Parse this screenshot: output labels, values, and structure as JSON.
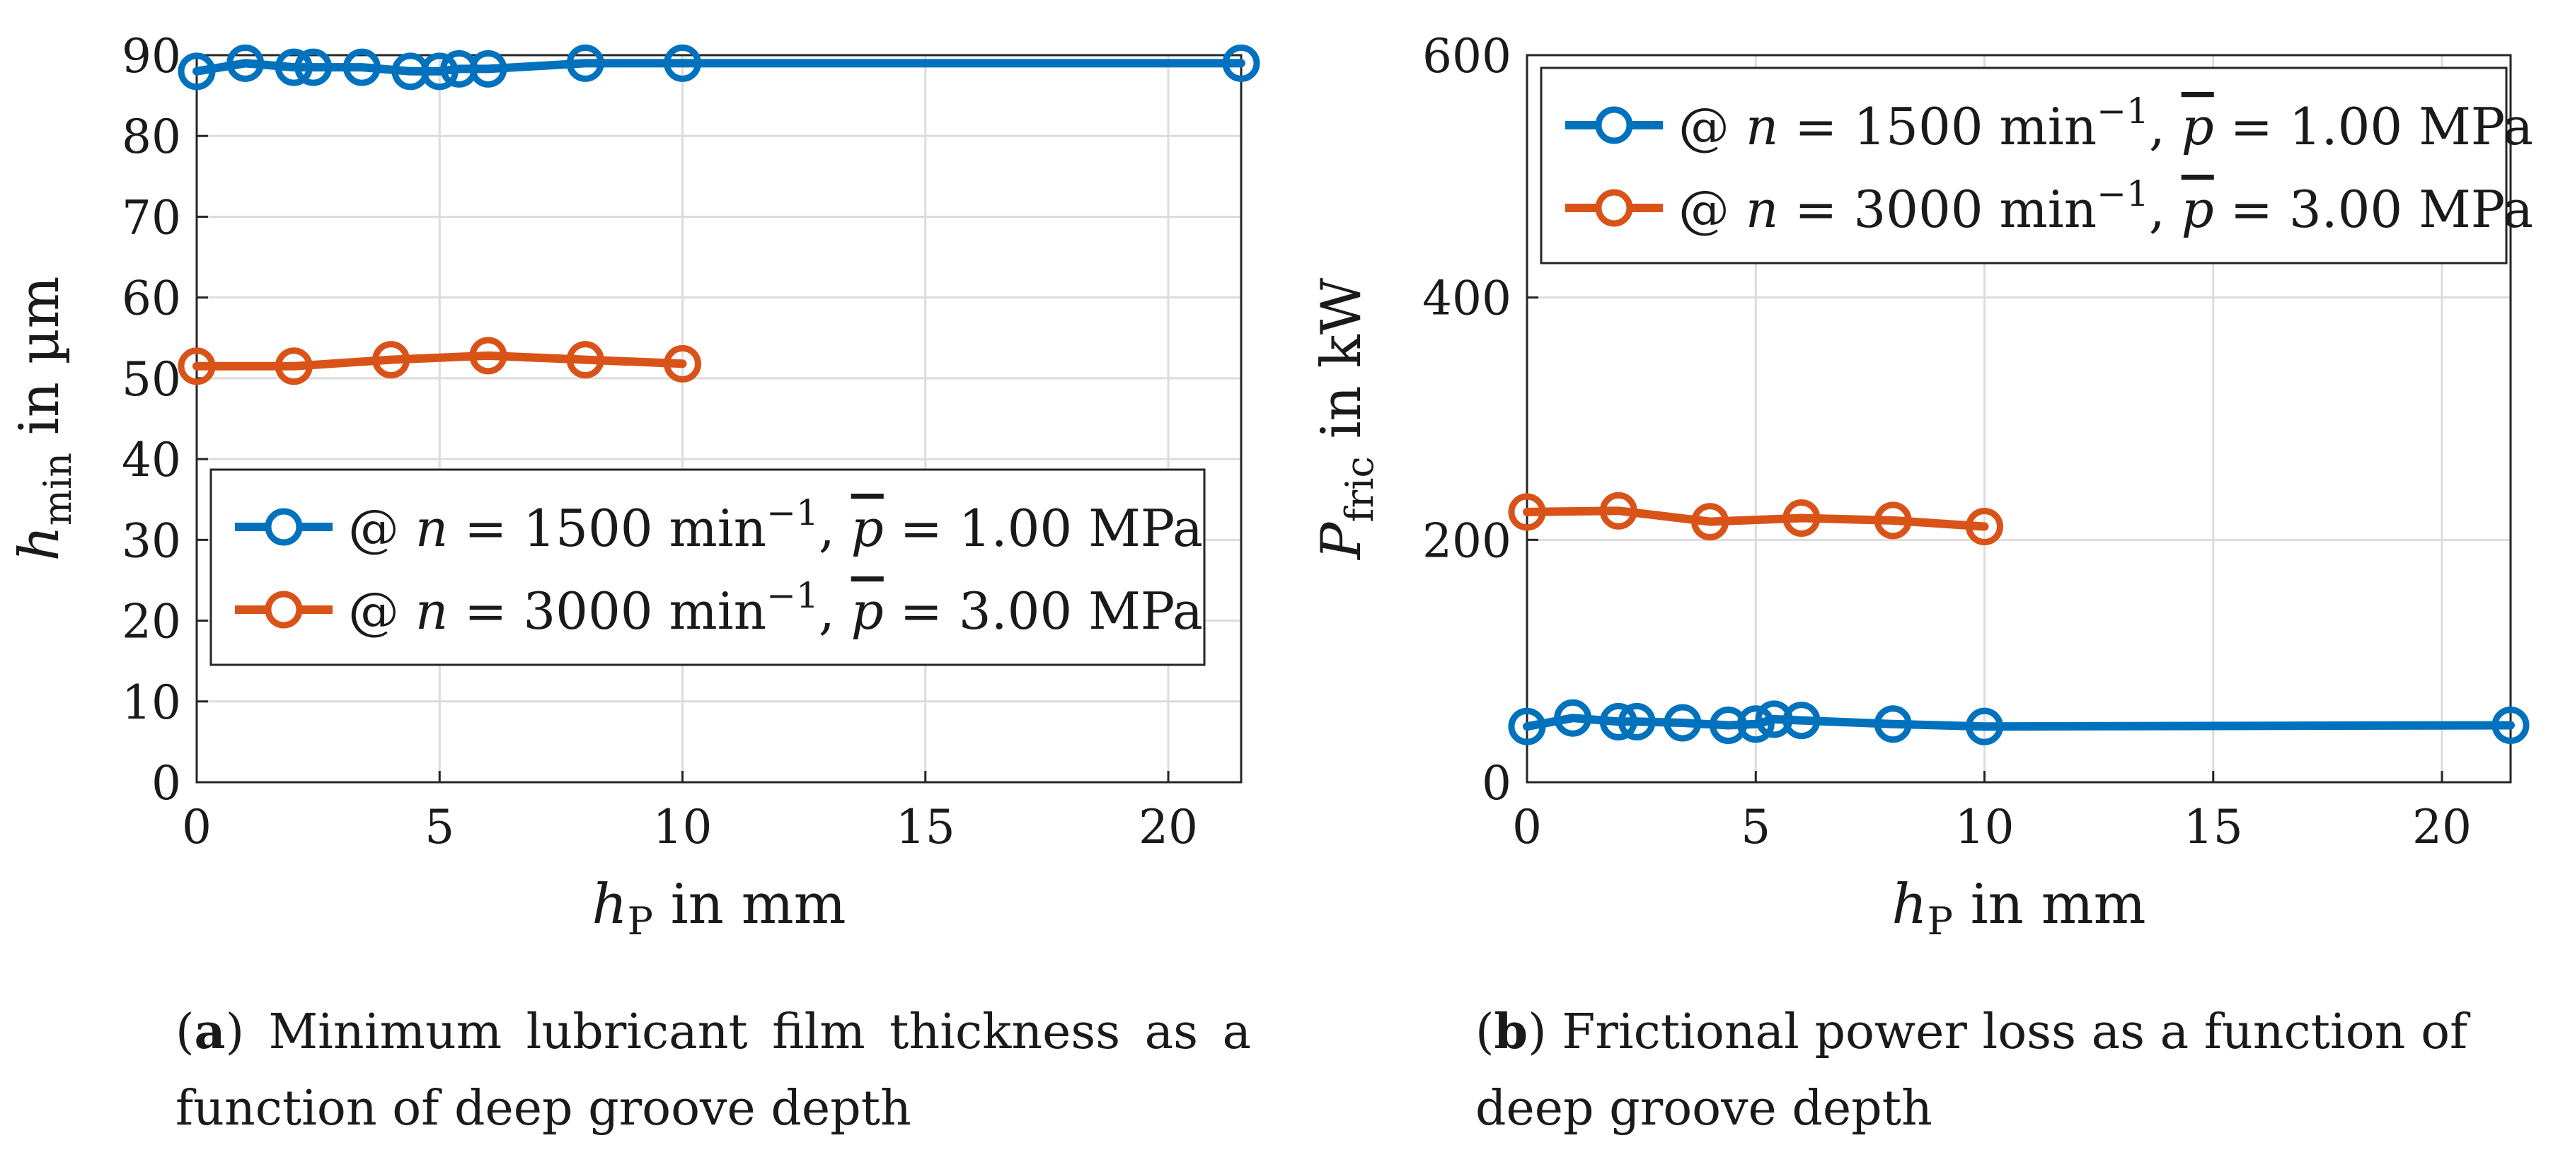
{
  "chart_data": [
    {
      "type": "line",
      "panel": "a",
      "xlabel": "h_P in mm",
      "ylabel": "h_min in µm",
      "xlim": [
        0,
        21.5
      ],
      "ylim": [
        0,
        90
      ],
      "xticks": [
        "0",
        "5",
        "10",
        "15",
        "20"
      ],
      "yticks": [
        "0",
        "10",
        "20",
        "30",
        "40",
        "50",
        "60",
        "70",
        "80",
        "90"
      ],
      "grid": true,
      "legend_position": "lower-right",
      "series": [
        {
          "name": "@ n = 1500 min⁻¹, p̄ = 1.00 MPa",
          "color": "#0072BD",
          "x": [
            0,
            1,
            2,
            2.4,
            3.4,
            4.4,
            5,
            5.4,
            6,
            8,
            10,
            21.5
          ],
          "y": [
            88,
            89,
            88.5,
            88.5,
            88.5,
            88,
            88,
            88.3,
            88.3,
            89,
            89,
            89
          ]
        },
        {
          "name": "@ n = 3000 min⁻¹, p̄ = 3.00 MPa",
          "color": "#D95319",
          "x": [
            0,
            2,
            4,
            6,
            8,
            10
          ],
          "y": [
            51.5,
            51.5,
            52.3,
            52.8,
            52.3,
            51.8
          ]
        }
      ]
    },
    {
      "type": "line",
      "panel": "b",
      "xlabel": "h_P in mm",
      "ylabel": "P_fric in kW",
      "xlim": [
        0,
        21.5
      ],
      "ylim": [
        0,
        600
      ],
      "xticks": [
        "0",
        "5",
        "10",
        "15",
        "20"
      ],
      "yticks": [
        "0",
        "200",
        "400",
        "600"
      ],
      "grid": true,
      "legend_position": "top-left",
      "series": [
        {
          "name": "@ n = 1500 min⁻¹, p̄ = 1.00 MPa",
          "color": "#0072BD",
          "x": [
            0,
            1,
            2,
            2.4,
            3.4,
            4.4,
            5,
            5.4,
            6,
            8,
            10,
            21.5
          ],
          "y": [
            46,
            53,
            50,
            50,
            49,
            47,
            48,
            52,
            51,
            48,
            46,
            47
          ]
        },
        {
          "name": "@ n = 3000 min⁻¹, p̄ = 3.00 MPa",
          "color": "#D95319",
          "x": [
            0,
            2,
            4,
            6,
            8,
            10
          ],
          "y": [
            223,
            224,
            215,
            218,
            216,
            211
          ]
        }
      ]
    }
  ],
  "text": {
    "legend_at": "@",
    "legend_n_value_1": "1500",
    "legend_n_value_2": "3000",
    "legend_min": "min",
    "legend_exp": "−1",
    "legend_p_value_1": "1.00",
    "legend_p_value_2": "3.00",
    "legend_mpa": "MPa",
    "var_n": "n",
    "var_p": "p",
    "var_h": "h",
    "var_P": "P",
    "sub_min": "min",
    "sub_P": "P",
    "sub_fric": "fric",
    "unit_um": " in µm",
    "unit_mm": " in mm",
    "unit_kw": " in kW"
  },
  "captions": {
    "a_label": "a",
    "a_text": " Minimum lubricant film thickness as a function of deep groove depth",
    "b_label": "b",
    "b_text": " Frictional power loss as a function of deep groove depth"
  }
}
